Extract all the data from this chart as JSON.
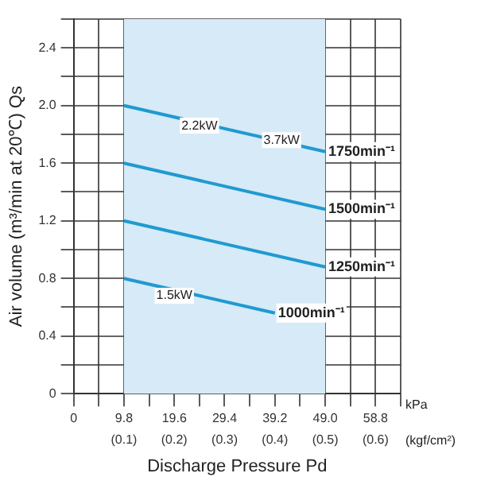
{
  "chart_data": {
    "type": "line",
    "xlabel": "Discharge Pressure Pd",
    "ylabel": "Air volume (m³/min at 20℃) Qs",
    "series": [
      {
        "name": "1750min⁻¹",
        "color": "#1f9ad0",
        "x": [
          9.8,
          49.0
        ],
        "values": [
          2.0,
          1.68
        ]
      },
      {
        "name": "1500min⁻¹",
        "color": "#1f9ad0",
        "x": [
          9.8,
          49.0
        ],
        "values": [
          1.6,
          1.28
        ]
      },
      {
        "name": "1250min⁻¹",
        "color": "#1f9ad0",
        "x": [
          9.8,
          49.0
        ],
        "values": [
          1.2,
          0.88
        ]
      },
      {
        "name": "1000min⁻¹",
        "color": "#1f9ad0",
        "x": [
          9.8,
          39.2
        ],
        "values": [
          0.8,
          0.56
        ]
      }
    ],
    "xlim": [
      0,
      63.7
    ],
    "xticks": [
      0,
      {
        "value": 4.9,
        "label": null
      },
      9.8,
      {
        "value": 14.7,
        "label": null
      },
      19.6,
      {
        "value": 24.5,
        "label": null
      },
      29.4,
      {
        "value": 34.3,
        "label": null
      },
      39.2,
      {
        "value": 44.1,
        "label": null
      },
      {
        "value": 49.0,
        "label": "49.0"
      },
      {
        "value": 53.9,
        "label": null
      },
      58.8,
      {
        "value": 63.7,
        "label": null
      }
    ],
    "x2lim": [
      0,
      0.65
    ],
    "x2ticks": [
      {
        "value": 0.1,
        "label": "(0.1)"
      },
      {
        "value": 0.2,
        "label": "(0.2)"
      },
      {
        "value": 0.3,
        "label": "(0.3)"
      },
      {
        "value": 0.4,
        "label": "(0.4)"
      },
      {
        "value": 0.5,
        "label": "(0.5)"
      },
      {
        "value": 0.6,
        "label": "(0.6)"
      }
    ],
    "x2label": "(kgf/cm²)",
    "ylim": [
      0,
      2.6
    ],
    "yticks": [
      0,
      {
        "value": 0.2,
        "label": null
      },
      0.4,
      {
        "value": 0.6,
        "label": null
      },
      0.8,
      {
        "value": 1.0,
        "label": null
      },
      1.2,
      {
        "value": 1.4,
        "label": null
      },
      1.6,
      {
        "value": 1.8,
        "label": null
      },
      {
        "value": 2.0,
        "label": "2.0"
      },
      {
        "value": 2.2,
        "label": null
      },
      2.4,
      {
        "value": 2.6,
        "label": null
      }
    ],
    "grid": true,
    "legend": false,
    "marker": "none",
    "line_style": "solid",
    "bands": [
      {
        "axis": "x",
        "from": 9.8,
        "to": 49.0,
        "color": "#d6eaf7"
      }
    ],
    "annotations": [
      {
        "text": "2.2kW",
        "x": 24.5,
        "y": 1.86
      },
      {
        "text": "3.7kW",
        "x": 40.5,
        "y": 1.76
      },
      {
        "text": "1.5kW",
        "x": 19.6,
        "y": 0.68
      },
      "kPa"
    ]
  }
}
